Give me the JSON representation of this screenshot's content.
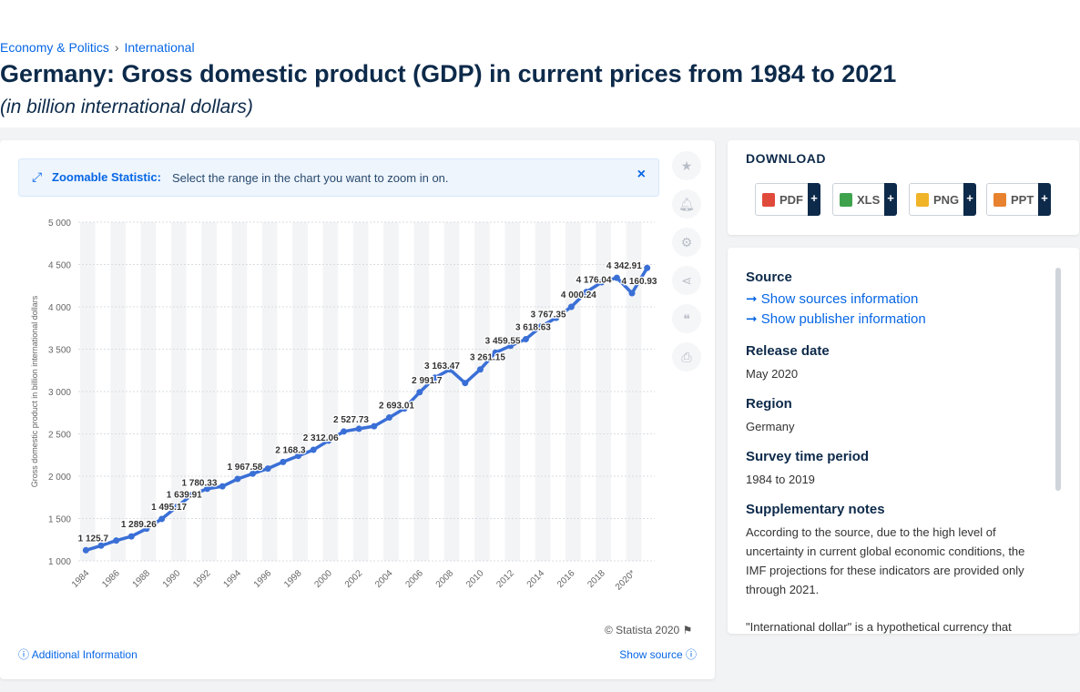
{
  "breadcrumb": {
    "first": "Economy & Politics",
    "separator": "›",
    "second": "International"
  },
  "page": {
    "title": "Germany: Gross domestic product (GDP) in current prices from 1984 to 2021",
    "subtitle": "(in billion international dollars)"
  },
  "zoom": {
    "label": "Zoomable Statistic:",
    "text": "Select the range in the chart you want to zoom in on.",
    "close": "×"
  },
  "chart_data": {
    "type": "line",
    "title": "",
    "xlabel": "",
    "ylabel": "Gross domestic product in billion international dollars",
    "ylim": [
      1000,
      5000
    ],
    "yticks": [
      1000,
      1500,
      2000,
      2500,
      3000,
      3500,
      4000,
      4500,
      5000
    ],
    "ytick_labels": [
      "1 000",
      "1 500",
      "2 000",
      "2 500",
      "3 000",
      "3 500",
      "4 000",
      "4 500",
      "5 000"
    ],
    "x": [
      "1984",
      "1985",
      "1986",
      "1987",
      "1988",
      "1989",
      "1990",
      "1991",
      "1992",
      "1993",
      "1994",
      "1995",
      "1996",
      "1997",
      "1998",
      "1999",
      "2000",
      "2001",
      "2002",
      "2003",
      "2004",
      "2005",
      "2006",
      "2007",
      "2008",
      "2009",
      "2010",
      "2011",
      "2012",
      "2013",
      "2014",
      "2015",
      "2016",
      "2017",
      "2018",
      "2019",
      "2020*",
      "2021*"
    ],
    "xtick_labels": [
      "1984",
      "1986",
      "1988",
      "1990",
      "1992",
      "1994",
      "1996",
      "1998",
      "2000",
      "2002",
      "2004",
      "2006",
      "2008",
      "2010",
      "2012",
      "2014",
      "2016",
      "2018",
      "2020*"
    ],
    "values": [
      1125.7,
      1180,
      1240,
      1289.26,
      1380,
      1495.17,
      1639.91,
      1780.33,
      1852,
      1880,
      1967.58,
      2030,
      2090,
      2168.3,
      2240,
      2312.06,
      2420,
      2527.73,
      2560,
      2590,
      2693.01,
      2800,
      2991.7,
      3163.47,
      3260,
      3100,
      3261.15,
      3459.55,
      3540,
      3618.63,
      3767.35,
      3870,
      4000.24,
      4176.04,
      4290,
      4342.91,
      4160.93,
      4460
    ],
    "data_labels": [
      {
        "x": "1984",
        "label": "1 125.7"
      },
      {
        "x": "1987",
        "label": "1 289.26"
      },
      {
        "x": "1989",
        "label": "1 495.17"
      },
      {
        "x": "1990",
        "label": "1 639.91"
      },
      {
        "x": "1991",
        "label": "1 780.33"
      },
      {
        "x": "1994",
        "label": "1 967.58"
      },
      {
        "x": "1997",
        "label": "2 168.3"
      },
      {
        "x": "1999",
        "label": "2 312.06"
      },
      {
        "x": "2001",
        "label": "2 527.73"
      },
      {
        "x": "2004",
        "label": "2 693.01"
      },
      {
        "x": "2006",
        "label": "2 991.7"
      },
      {
        "x": "2007",
        "label": "3 163.47"
      },
      {
        "x": "2010",
        "label": "3 261.15"
      },
      {
        "x": "2011",
        "label": "3 459.55"
      },
      {
        "x": "2013",
        "label": "3 618.63"
      },
      {
        "x": "2014",
        "label": "3 767.35"
      },
      {
        "x": "2016",
        "label": "4 000.24"
      },
      {
        "x": "2017",
        "label": "4 176.04"
      },
      {
        "x": "2019",
        "label": "4 342.91"
      },
      {
        "x": "2020*",
        "label": "4 160.93"
      }
    ],
    "grid": true,
    "legend": "none",
    "line_color": "#3a6fd6"
  },
  "footer": {
    "copyright": "© Statista 2020",
    "additional": "Additional Information",
    "show_source": "Show source"
  },
  "download": {
    "title": "DOWNLOAD",
    "buttons": [
      {
        "label": "PDF",
        "plus": "+",
        "color": "#e04a3b"
      },
      {
        "label": "XLS",
        "plus": "+",
        "color": "#3fa34d"
      },
      {
        "label": "PNG",
        "plus": "+",
        "color": "#f0b429"
      },
      {
        "label": "PPT",
        "plus": "+",
        "color": "#e8822e"
      }
    ]
  },
  "info": {
    "source_label": "Source",
    "show_sources": "Show sources information",
    "show_publisher": "Show publisher information",
    "release_label": "Release date",
    "release_value": "May 2020",
    "region_label": "Region",
    "region_value": "Germany",
    "survey_label": "Survey time period",
    "survey_value": "1984 to 2019",
    "notes_label": "Supplementary notes",
    "notes_value": "According to the source, due to the high level of uncertainty in current global economic conditions, the IMF projections for these indicators are provided only through 2021.",
    "notes_more": "\"International dollar\" is a hypothetical currency that"
  },
  "tools": [
    "star-icon",
    "bell-icon",
    "gear-icon",
    "share-icon",
    "quote-icon",
    "print-icon"
  ]
}
